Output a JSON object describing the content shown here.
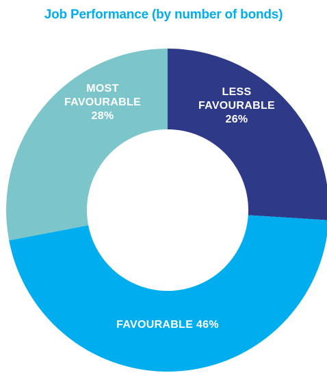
{
  "chart_data": {
    "type": "pie",
    "variant": "donut",
    "title": "Job Performance (by number of bonds)",
    "slices": [
      {
        "name": "LESS FAVOURABLE",
        "value": 26,
        "label_lines": [
          "LESS",
          "FAVOURABLE",
          "26%"
        ],
        "color": "#2e3a87"
      },
      {
        "name": "FAVOURABLE",
        "value": 46,
        "label_lines": [
          "FAVOURABLE 46%"
        ],
        "color": "#00aeef"
      },
      {
        "name": "MOST FAVOURABLE",
        "value": 28,
        "label_lines": [
          "MOST",
          "FAVOURABLE",
          "28%"
        ],
        "color": "#7cc6cb"
      }
    ],
    "start": "12 o'clock",
    "direction": "clockwise",
    "legend": "none"
  },
  "colors": {
    "title": "#00aeef",
    "background": "#ffffff",
    "hole": "#ffffff"
  }
}
